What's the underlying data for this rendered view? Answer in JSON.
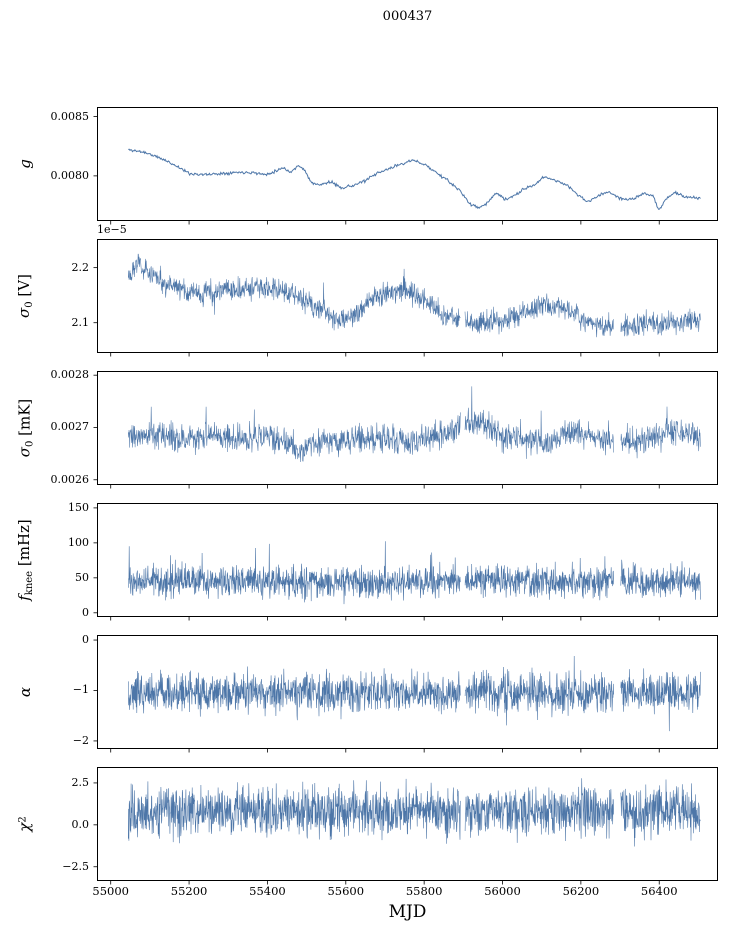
{
  "title": "000437",
  "chart_data": {
    "type": "line",
    "title": "000437",
    "xlabel": "MJD",
    "line_color": "#4d76a8",
    "frame_color": "#000000",
    "grid": false,
    "legend": null,
    "x_lim": [
      54965,
      56550
    ],
    "x_data_range": [
      55045,
      56505
    ],
    "x_ticks": [
      55000,
      55200,
      55400,
      55600,
      55800,
      56000,
      56200,
      56400
    ],
    "x_tick_labels": [
      "55000",
      "55200",
      "55400",
      "55600",
      "55800",
      "56000",
      "56200",
      "56400"
    ],
    "panel_tops": [
      107,
      239,
      371,
      503,
      635,
      767
    ],
    "panels": [
      {
        "id": "g",
        "ylabel_parts": [
          {
            "t": "g",
            "style": "i"
          }
        ],
        "y_lim": [
          0.00762,
          0.00858
        ],
        "ytick_vals": [
          0.008,
          0.0085
        ],
        "ytick_labels": [
          "0.0080",
          "0.0085"
        ],
        "offset": "",
        "noise": 6e-06,
        "points": 700,
        "seed": 11,
        "lw": 1.0,
        "gaps": [],
        "trend": [
          [
            55045,
            0.00822
          ],
          [
            55085,
            0.0082
          ],
          [
            55110,
            0.00817
          ],
          [
            55140,
            0.00813
          ],
          [
            55170,
            0.00808
          ],
          [
            55200,
            0.00802
          ],
          [
            55240,
            0.00801
          ],
          [
            55280,
            0.00802
          ],
          [
            55320,
            0.00803
          ],
          [
            55360,
            0.00803
          ],
          [
            55395,
            0.00801
          ],
          [
            55420,
            0.00804
          ],
          [
            55440,
            0.00807
          ],
          [
            55460,
            0.00803
          ],
          [
            55480,
            0.00809
          ],
          [
            55495,
            0.00805
          ],
          [
            55510,
            0.00795
          ],
          [
            55530,
            0.00792
          ],
          [
            55560,
            0.00795
          ],
          [
            55590,
            0.0079
          ],
          [
            55620,
            0.00792
          ],
          [
            55650,
            0.00796
          ],
          [
            55680,
            0.00802
          ],
          [
            55710,
            0.00806
          ],
          [
            55740,
            0.0081
          ],
          [
            55770,
            0.00813
          ],
          [
            55800,
            0.0081
          ],
          [
            55830,
            0.00803
          ],
          [
            55860,
            0.00796
          ],
          [
            55890,
            0.00788
          ],
          [
            55915,
            0.00777
          ],
          [
            55940,
            0.00773
          ],
          [
            55960,
            0.00777
          ],
          [
            55985,
            0.00786
          ],
          [
            56005,
            0.0078
          ],
          [
            56030,
            0.00783
          ],
          [
            56055,
            0.00789
          ],
          [
            56080,
            0.00792
          ],
          [
            56105,
            0.00799
          ],
          [
            56130,
            0.00797
          ],
          [
            56160,
            0.00793
          ],
          [
            56190,
            0.00785
          ],
          [
            56215,
            0.00778
          ],
          [
            56245,
            0.00783
          ],
          [
            56270,
            0.00787
          ],
          [
            56300,
            0.00781
          ],
          [
            56330,
            0.0078
          ],
          [
            56360,
            0.00785
          ],
          [
            56385,
            0.00783
          ],
          [
            56400,
            0.00771
          ],
          [
            56415,
            0.0078
          ],
          [
            56440,
            0.00786
          ],
          [
            56470,
            0.00782
          ],
          [
            56505,
            0.00781
          ]
        ]
      },
      {
        "id": "sigma0-v",
        "ylabel_parts": [
          {
            "t": "σ",
            "style": "i"
          },
          {
            "t": "0",
            "style": "sub"
          },
          {
            "t": " [V]",
            "style": "n"
          }
        ],
        "y_lim": [
          2.045,
          2.252
        ],
        "ytick_vals": [
          2.1,
          2.2
        ],
        "ytick_labels": [
          "2.1",
          "2.2"
        ],
        "offset": "1e−5",
        "noise": 0.01,
        "points": 1700,
        "seed": 22,
        "lw": 0.55,
        "gaps": [
          [
            55893,
            55904
          ],
          [
            56284,
            56302
          ]
        ],
        "spikes": {
          "prob": 0.004,
          "amp": 0.05,
          "dir": 0
        },
        "trend": [
          [
            55045,
            2.19
          ],
          [
            55070,
            2.21
          ],
          [
            55100,
            2.19
          ],
          [
            55140,
            2.17
          ],
          [
            55180,
            2.16
          ],
          [
            55230,
            2.15
          ],
          [
            55280,
            2.16
          ],
          [
            55330,
            2.16
          ],
          [
            55380,
            2.165
          ],
          [
            55420,
            2.16
          ],
          [
            55460,
            2.155
          ],
          [
            55500,
            2.14
          ],
          [
            55540,
            2.12
          ],
          [
            55580,
            2.105
          ],
          [
            55620,
            2.11
          ],
          [
            55660,
            2.14
          ],
          [
            55700,
            2.155
          ],
          [
            55740,
            2.16
          ],
          [
            55770,
            2.155
          ],
          [
            55810,
            2.135
          ],
          [
            55850,
            2.115
          ],
          [
            55890,
            2.105
          ],
          [
            55930,
            2.1
          ],
          [
            55970,
            2.1
          ],
          [
            56010,
            2.105
          ],
          [
            56060,
            2.12
          ],
          [
            56100,
            2.13
          ],
          [
            56140,
            2.13
          ],
          [
            56180,
            2.12
          ],
          [
            56220,
            2.1
          ],
          [
            56260,
            2.095
          ],
          [
            56300,
            2.09
          ],
          [
            56340,
            2.095
          ],
          [
            56380,
            2.1
          ],
          [
            56420,
            2.1
          ],
          [
            56460,
            2.1
          ],
          [
            56505,
            2.11
          ]
        ]
      },
      {
        "id": "sigma0-mk",
        "ylabel_parts": [
          {
            "t": "σ",
            "style": "i"
          },
          {
            "t": "0",
            "style": "sub"
          },
          {
            "t": " [mK]",
            "style": "n"
          }
        ],
        "y_lim": [
          0.00259,
          0.002808
        ],
        "ytick_vals": [
          0.0026,
          0.0027,
          0.0028
        ],
        "ytick_labels": [
          "0.0026",
          "0.0027",
          "0.0028"
        ],
        "offset": "",
        "noise": 1.3e-05,
        "points": 1700,
        "seed": 33,
        "lw": 0.55,
        "gaps": [
          [
            55893,
            55904
          ],
          [
            56284,
            56302
          ]
        ],
        "spikes": {
          "prob": 0.005,
          "amp": 7e-05,
          "dir": 1
        },
        "trend": [
          [
            55045,
            0.00268
          ],
          [
            55100,
            0.002685
          ],
          [
            55150,
            0.00268
          ],
          [
            55200,
            0.002678
          ],
          [
            55250,
            0.002685
          ],
          [
            55300,
            0.00268
          ],
          [
            55350,
            0.002678
          ],
          [
            55400,
            0.002688
          ],
          [
            55440,
            0.002672
          ],
          [
            55480,
            0.002655
          ],
          [
            55520,
            0.002668
          ],
          [
            55560,
            0.002675
          ],
          [
            55600,
            0.002678
          ],
          [
            55650,
            0.002675
          ],
          [
            55700,
            0.002678
          ],
          [
            55750,
            0.002672
          ],
          [
            55800,
            0.002678
          ],
          [
            55840,
            0.002685
          ],
          [
            55880,
            0.002695
          ],
          [
            55905,
            0.002715
          ],
          [
            55925,
            0.002705
          ],
          [
            55950,
            0.002712
          ],
          [
            55975,
            0.002695
          ],
          [
            56000,
            0.002682
          ],
          [
            56040,
            0.002678
          ],
          [
            56080,
            0.002672
          ],
          [
            56120,
            0.002668
          ],
          [
            56160,
            0.002688
          ],
          [
            56200,
            0.002692
          ],
          [
            56240,
            0.002675
          ],
          [
            56280,
            0.002678
          ],
          [
            56320,
            0.002672
          ],
          [
            56360,
            0.002675
          ],
          [
            56400,
            0.002686
          ],
          [
            56440,
            0.002695
          ],
          [
            56470,
            0.002688
          ],
          [
            56505,
            0.002685
          ]
        ]
      },
      {
        "id": "fknee",
        "ylabel_parts": [
          {
            "t": "f",
            "style": "i"
          },
          {
            "t": "knee",
            "style": "sub"
          },
          {
            "t": " [mHz]",
            "style": "n"
          }
        ],
        "y_lim": [
          -6,
          157
        ],
        "ytick_vals": [
          0,
          50,
          100,
          150
        ],
        "ytick_labels": [
          "0",
          "50",
          "100",
          "150"
        ],
        "offset": "",
        "noise": 11,
        "points": 1900,
        "seed": 44,
        "lw": 0.6,
        "gaps": [
          [
            55893,
            55904
          ],
          [
            56284,
            56302
          ]
        ],
        "spikes": {
          "prob": 0.012,
          "amp": 60,
          "dir": 1
        },
        "trend": [
          [
            55045,
            45
          ],
          [
            55200,
            46
          ],
          [
            55400,
            46
          ],
          [
            55600,
            42
          ],
          [
            55800,
            44
          ],
          [
            55900,
            46
          ],
          [
            56000,
            47
          ],
          [
            56100,
            46
          ],
          [
            56200,
            45
          ],
          [
            56300,
            44
          ],
          [
            56400,
            46
          ],
          [
            56505,
            45
          ]
        ]
      },
      {
        "id": "alpha",
        "ylabel_parts": [
          {
            "t": "α",
            "style": "i"
          }
        ],
        "y_lim": [
          -2.16,
          0.1
        ],
        "ytick_vals": [
          0,
          -1,
          -2
        ],
        "ytick_labels": [
          "0",
          "−1",
          "−2"
        ],
        "offset": "",
        "noise": 0.19,
        "points": 1900,
        "seed": 55,
        "lw": 0.6,
        "gaps": [
          [
            55893,
            55904
          ],
          [
            56284,
            56302
          ]
        ],
        "spikes": {
          "prob": 0.012,
          "amp": 0.7,
          "dir": 0
        },
        "trend": [
          [
            55045,
            -1.02
          ],
          [
            55300,
            -1.05
          ],
          [
            55600,
            -1.06
          ],
          [
            55900,
            -1.04
          ],
          [
            56200,
            -1.05
          ],
          [
            56505,
            -1.04
          ]
        ]
      },
      {
        "id": "chi2",
        "ylabel_parts": [
          {
            "t": "χ",
            "style": "i"
          },
          {
            "t": "2",
            "style": "sup"
          }
        ],
        "y_lim": [
          -3.35,
          3.45
        ],
        "ytick_vals": [
          2.5,
          0.0,
          -2.5
        ],
        "ytick_labels": [
          "2.5",
          "0.0",
          "−2.5"
        ],
        "offset": "",
        "noise": 0.72,
        "points": 1900,
        "seed": 66,
        "lw": 0.6,
        "gaps": [
          [
            55893,
            55904
          ],
          [
            56284,
            56302
          ]
        ],
        "spikes": {
          "prob": 0.015,
          "amp": 1.5,
          "dir": 0
        },
        "trend": [
          [
            55045,
            0.8
          ],
          [
            55300,
            0.85
          ],
          [
            55600,
            0.8
          ],
          [
            55900,
            0.85
          ],
          [
            56200,
            0.8
          ],
          [
            56505,
            0.85
          ]
        ]
      }
    ]
  }
}
